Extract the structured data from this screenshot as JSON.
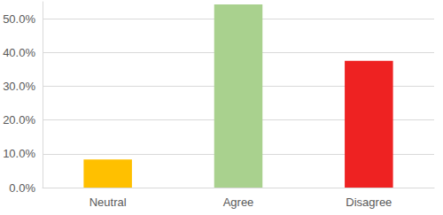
{
  "chart_data": {
    "type": "bar",
    "categories": [
      "Neutral",
      "Agree",
      "Disagree"
    ],
    "values": [
      8.3,
      54.2,
      37.5
    ],
    "colors": [
      "#ffc000",
      "#a9d18e",
      "#ee2222"
    ],
    "ylim": [
      0,
      55
    ],
    "yticks": [
      {
        "value": 0,
        "label": "0.0%"
      },
      {
        "value": 10,
        "label": "10.0%"
      },
      {
        "value": 20,
        "label": "20.0%"
      },
      {
        "value": 30,
        "label": "30.0%"
      },
      {
        "value": 40,
        "label": "40.0%"
      },
      {
        "value": 50,
        "label": "50.0%"
      }
    ],
    "grid": true
  }
}
